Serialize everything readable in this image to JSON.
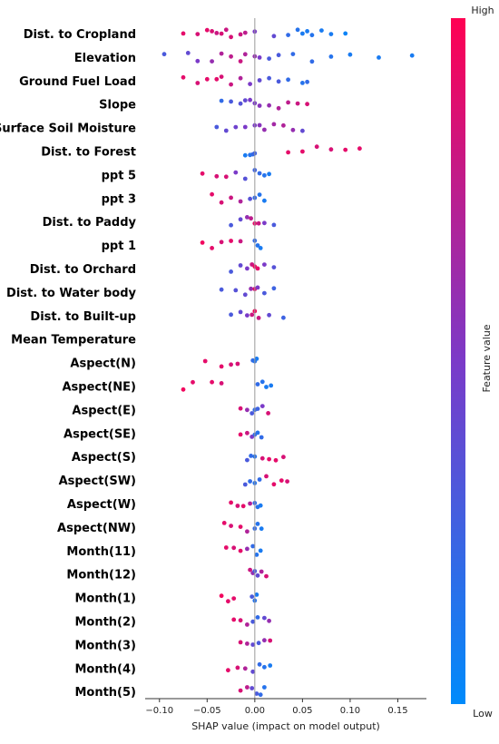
{
  "chart_data": {
    "type": "scatter",
    "subtype": "shap-beeswarm",
    "title": "",
    "xlabel": "SHAP value (impact on model output)",
    "ylabel": "",
    "xlim": [
      -0.115,
      0.18
    ],
    "xticks": [
      -0.1,
      -0.05,
      0.0,
      0.05,
      0.1,
      0.15
    ],
    "xtick_labels": [
      "−0.10",
      "−0.05",
      "0.00",
      "0.05",
      "0.10",
      "0.15"
    ],
    "grid": false,
    "colorbar": {
      "title": "Feature value",
      "high_label": "High",
      "low_label": "Low",
      "high_color": "#ff0052",
      "low_color": "#008bfb"
    },
    "features": [
      {
        "name": "Dist. to Cropland",
        "points": [
          [
            -0.075,
            0.9
          ],
          [
            -0.06,
            0.85
          ],
          [
            -0.05,
            0.9
          ],
          [
            -0.045,
            0.85
          ],
          [
            -0.04,
            0.8
          ],
          [
            -0.035,
            0.85
          ],
          [
            -0.03,
            0.8
          ],
          [
            -0.025,
            0.85
          ],
          [
            -0.015,
            0.8
          ],
          [
            -0.01,
            0.75
          ],
          [
            0.0,
            0.5
          ],
          [
            0.02,
            0.4
          ],
          [
            0.035,
            0.2
          ],
          [
            0.045,
            0.15
          ],
          [
            0.05,
            0.1
          ],
          [
            0.055,
            0.1
          ],
          [
            0.06,
            0.15
          ],
          [
            0.07,
            0.1
          ],
          [
            0.08,
            0.1
          ],
          [
            0.095,
            0.05
          ]
        ]
      },
      {
        "name": "Elevation",
        "points": [
          [
            -0.095,
            0.3
          ],
          [
            -0.07,
            0.4
          ],
          [
            -0.06,
            0.5
          ],
          [
            -0.045,
            0.6
          ],
          [
            -0.035,
            0.7
          ],
          [
            -0.025,
            0.75
          ],
          [
            -0.015,
            0.8
          ],
          [
            -0.01,
            0.7
          ],
          [
            0.0,
            0.6
          ],
          [
            0.005,
            0.5
          ],
          [
            0.015,
            0.3
          ],
          [
            0.025,
            0.3
          ],
          [
            0.04,
            0.2
          ],
          [
            0.06,
            0.2
          ],
          [
            0.08,
            0.15
          ],
          [
            0.1,
            0.1
          ],
          [
            0.13,
            0.1
          ],
          [
            0.165,
            0.1
          ]
        ]
      },
      {
        "name": "Ground Fuel Load",
        "points": [
          [
            -0.075,
            0.9
          ],
          [
            -0.06,
            0.85
          ],
          [
            -0.05,
            0.9
          ],
          [
            -0.04,
            0.9
          ],
          [
            -0.035,
            0.85
          ],
          [
            -0.025,
            0.8
          ],
          [
            -0.015,
            0.7
          ],
          [
            -0.005,
            0.5
          ],
          [
            0.005,
            0.4
          ],
          [
            0.015,
            0.3
          ],
          [
            0.025,
            0.3
          ],
          [
            0.035,
            0.2
          ],
          [
            0.05,
            0.15
          ],
          [
            0.055,
            0.2
          ]
        ]
      },
      {
        "name": "Slope",
        "points": [
          [
            -0.035,
            0.2
          ],
          [
            -0.025,
            0.3
          ],
          [
            -0.015,
            0.35
          ],
          [
            -0.01,
            0.4
          ],
          [
            -0.005,
            0.5
          ],
          [
            0.0,
            0.5
          ],
          [
            0.005,
            0.55
          ],
          [
            0.015,
            0.6
          ],
          [
            0.025,
            0.7
          ],
          [
            0.035,
            0.75
          ],
          [
            0.045,
            0.8
          ],
          [
            0.055,
            0.85
          ]
        ]
      },
      {
        "name": "Surface Soil Moisture",
        "points": [
          [
            -0.04,
            0.3
          ],
          [
            -0.03,
            0.4
          ],
          [
            -0.02,
            0.45
          ],
          [
            -0.01,
            0.5
          ],
          [
            0.0,
            0.5
          ],
          [
            0.005,
            0.55
          ],
          [
            0.01,
            0.6
          ],
          [
            0.02,
            0.65
          ],
          [
            0.03,
            0.7
          ],
          [
            0.04,
            0.6
          ],
          [
            0.05,
            0.4
          ]
        ]
      },
      {
        "name": "Dist. to Forest",
        "points": [
          [
            -0.01,
            0.1
          ],
          [
            -0.005,
            0.15
          ],
          [
            -0.002,
            0.2
          ],
          [
            0.0,
            0.25
          ],
          [
            0.035,
            0.9
          ],
          [
            0.05,
            0.9
          ],
          [
            0.065,
            0.85
          ],
          [
            0.08,
            0.85
          ],
          [
            0.095,
            0.9
          ],
          [
            0.11,
            0.9
          ]
        ]
      },
      {
        "name": "ppt 5",
        "points": [
          [
            -0.055,
            0.9
          ],
          [
            -0.04,
            0.85
          ],
          [
            -0.03,
            0.85
          ],
          [
            -0.02,
            0.5
          ],
          [
            -0.01,
            0.35
          ],
          [
            0.0,
            0.25
          ],
          [
            0.005,
            0.2
          ],
          [
            0.01,
            0.15
          ],
          [
            0.015,
            0.1
          ]
        ]
      },
      {
        "name": "ppt 3",
        "points": [
          [
            -0.045,
            0.9
          ],
          [
            -0.035,
            0.85
          ],
          [
            -0.025,
            0.8
          ],
          [
            -0.015,
            0.7
          ],
          [
            -0.005,
            0.35
          ],
          [
            0.0,
            0.2
          ],
          [
            0.005,
            0.15
          ],
          [
            0.01,
            0.1
          ]
        ]
      },
      {
        "name": "Dist. to Paddy",
        "points": [
          [
            -0.025,
            0.3
          ],
          [
            -0.015,
            0.4
          ],
          [
            -0.008,
            0.6
          ],
          [
            -0.004,
            0.75
          ],
          [
            0.0,
            0.9
          ],
          [
            0.004,
            0.8
          ],
          [
            0.01,
            0.5
          ],
          [
            0.02,
            0.3
          ]
        ]
      },
      {
        "name": "ppt 1",
        "points": [
          [
            -0.055,
            0.95
          ],
          [
            -0.045,
            0.9
          ],
          [
            -0.035,
            0.85
          ],
          [
            -0.025,
            0.9
          ],
          [
            -0.015,
            0.8
          ],
          [
            0.0,
            0.2
          ],
          [
            0.003,
            0.15
          ],
          [
            0.006,
            0.1
          ]
        ]
      },
      {
        "name": "Dist. to Orchard",
        "points": [
          [
            -0.025,
            0.3
          ],
          [
            -0.015,
            0.4
          ],
          [
            -0.008,
            0.5
          ],
          [
            -0.003,
            0.8
          ],
          [
            0.0,
            0.95
          ],
          [
            0.003,
            0.9
          ],
          [
            0.01,
            0.5
          ],
          [
            0.02,
            0.35
          ]
        ]
      },
      {
        "name": "Dist. to Water body",
        "points": [
          [
            -0.035,
            0.3
          ],
          [
            -0.02,
            0.35
          ],
          [
            -0.01,
            0.4
          ],
          [
            -0.004,
            0.6
          ],
          [
            0.0,
            0.9
          ],
          [
            0.003,
            0.5
          ],
          [
            0.01,
            0.3
          ],
          [
            0.02,
            0.25
          ]
        ]
      },
      {
        "name": "Dist. to Built-up",
        "points": [
          [
            -0.025,
            0.3
          ],
          [
            -0.015,
            0.4
          ],
          [
            -0.008,
            0.5
          ],
          [
            -0.003,
            0.8
          ],
          [
            0.0,
            0.95
          ],
          [
            0.004,
            0.8
          ],
          [
            0.015,
            0.4
          ],
          [
            0.03,
            0.25
          ]
        ]
      },
      {
        "name": "Mean Temperature",
        "points": []
      },
      {
        "name": "Aspect(N)",
        "points": [
          [
            -0.052,
            0.9
          ],
          [
            -0.035,
            0.9
          ],
          [
            -0.025,
            0.85
          ],
          [
            -0.018,
            0.85
          ],
          [
            -0.002,
            0.2
          ],
          [
            0.0,
            0.15
          ],
          [
            0.002,
            0.1
          ]
        ]
      },
      {
        "name": "Aspect(NE)",
        "points": [
          [
            -0.075,
            0.95
          ],
          [
            -0.065,
            0.9
          ],
          [
            -0.045,
            0.9
          ],
          [
            -0.035,
            0.85
          ],
          [
            0.003,
            0.2
          ],
          [
            0.008,
            0.15
          ],
          [
            0.012,
            0.1
          ],
          [
            0.017,
            0.1
          ]
        ]
      },
      {
        "name": "Aspect(E)",
        "points": [
          [
            -0.015,
            0.85
          ],
          [
            -0.008,
            0.6
          ],
          [
            -0.003,
            0.3
          ],
          [
            0.0,
            0.2
          ],
          [
            0.003,
            0.25
          ],
          [
            0.008,
            0.5
          ],
          [
            0.014,
            0.85
          ]
        ]
      },
      {
        "name": "Aspect(SE)",
        "points": [
          [
            -0.015,
            0.9
          ],
          [
            -0.008,
            0.8
          ],
          [
            -0.003,
            0.5
          ],
          [
            0.0,
            0.2
          ],
          [
            0.003,
            0.15
          ],
          [
            0.007,
            0.2
          ]
        ]
      },
      {
        "name": "Aspect(S)",
        "points": [
          [
            -0.008,
            0.3
          ],
          [
            -0.004,
            0.2
          ],
          [
            0.0,
            0.15
          ],
          [
            0.008,
            0.85
          ],
          [
            0.015,
            0.9
          ],
          [
            0.022,
            0.9
          ],
          [
            0.03,
            0.85
          ]
        ]
      },
      {
        "name": "Aspect(SW)",
        "points": [
          [
            -0.01,
            0.3
          ],
          [
            -0.005,
            0.2
          ],
          [
            0.0,
            0.15
          ],
          [
            0.005,
            0.2
          ],
          [
            0.012,
            0.85
          ],
          [
            0.02,
            0.9
          ],
          [
            0.028,
            0.9
          ],
          [
            0.034,
            0.85
          ]
        ]
      },
      {
        "name": "Aspect(W)",
        "points": [
          [
            -0.025,
            0.9
          ],
          [
            -0.018,
            0.85
          ],
          [
            -0.012,
            0.9
          ],
          [
            -0.005,
            0.7
          ],
          [
            0.0,
            0.2
          ],
          [
            0.003,
            0.15
          ],
          [
            0.006,
            0.1
          ]
        ]
      },
      {
        "name": "Aspect(NW)",
        "points": [
          [
            -0.032,
            0.9
          ],
          [
            -0.025,
            0.85
          ],
          [
            -0.015,
            0.9
          ],
          [
            -0.008,
            0.7
          ],
          [
            0.0,
            0.2
          ],
          [
            0.003,
            0.15
          ],
          [
            0.007,
            0.1
          ]
        ]
      },
      {
        "name": "Month(11)",
        "points": [
          [
            -0.03,
            0.9
          ],
          [
            -0.022,
            0.85
          ],
          [
            -0.015,
            0.9
          ],
          [
            -0.008,
            0.6
          ],
          [
            -0.002,
            0.2
          ],
          [
            0.002,
            0.15
          ],
          [
            0.006,
            0.1
          ]
        ]
      },
      {
        "name": "Month(12)",
        "points": [
          [
            -0.005,
            0.8
          ],
          [
            -0.002,
            0.6
          ],
          [
            0.0,
            0.3
          ],
          [
            0.003,
            0.4
          ],
          [
            0.007,
            0.7
          ],
          [
            0.012,
            0.85
          ]
        ]
      },
      {
        "name": "Month(1)",
        "points": [
          [
            -0.035,
            0.95
          ],
          [
            -0.028,
            0.9
          ],
          [
            -0.022,
            0.9
          ],
          [
            -0.003,
            0.3
          ],
          [
            0.0,
            0.15
          ],
          [
            0.002,
            0.1
          ]
        ]
      },
      {
        "name": "Month(2)",
        "points": [
          [
            -0.022,
            0.9
          ],
          [
            -0.015,
            0.85
          ],
          [
            -0.008,
            0.7
          ],
          [
            -0.002,
            0.3
          ],
          [
            0.003,
            0.2
          ],
          [
            0.01,
            0.4
          ],
          [
            0.015,
            0.6
          ]
        ]
      },
      {
        "name": "Month(3)",
        "points": [
          [
            -0.015,
            0.85
          ],
          [
            -0.008,
            0.7
          ],
          [
            -0.002,
            0.4
          ],
          [
            0.004,
            0.3
          ],
          [
            0.01,
            0.6
          ],
          [
            0.016,
            0.85
          ]
        ]
      },
      {
        "name": "Month(4)",
        "points": [
          [
            -0.028,
            0.9
          ],
          [
            -0.018,
            0.85
          ],
          [
            -0.01,
            0.7
          ],
          [
            -0.002,
            0.4
          ],
          [
            0.005,
            0.2
          ],
          [
            0.01,
            0.15
          ],
          [
            0.016,
            0.1
          ]
        ]
      },
      {
        "name": "Month(5)",
        "points": [
          [
            -0.015,
            0.85
          ],
          [
            -0.008,
            0.75
          ],
          [
            -0.003,
            0.4
          ],
          [
            0.002,
            0.3
          ],
          [
            0.006,
            0.2
          ],
          [
            0.01,
            0.15
          ]
        ]
      }
    ]
  }
}
